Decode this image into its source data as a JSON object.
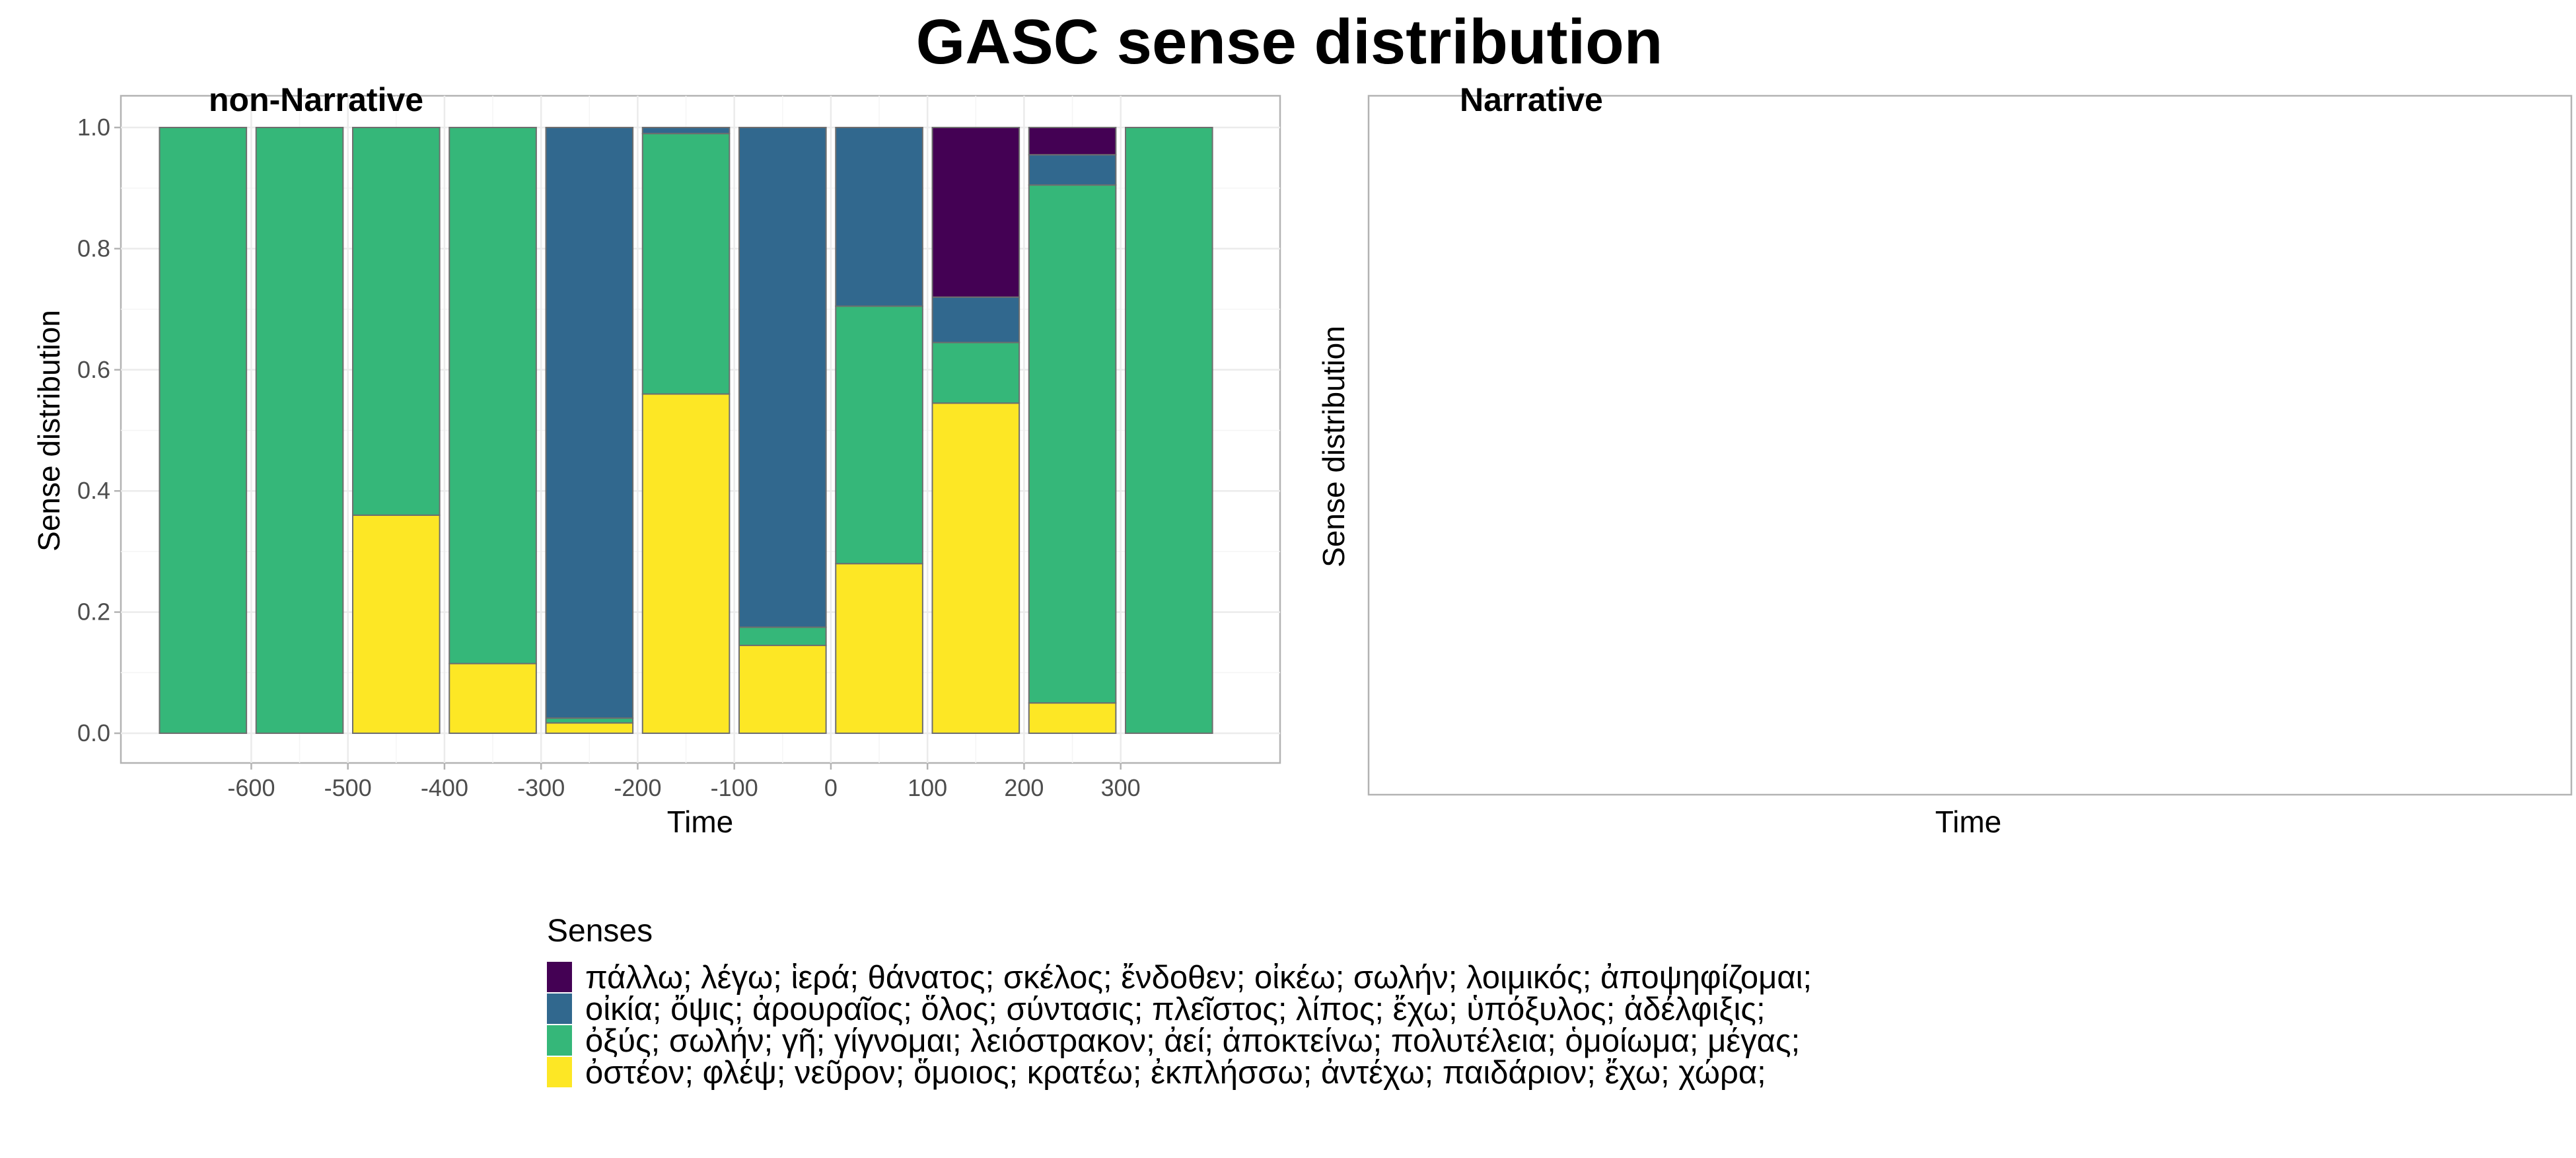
{
  "title": "GASC sense distribution",
  "colors": {
    "sense1": "#440154",
    "sense2": "#31688E",
    "sense3": "#35B779",
    "sense4": "#FDE725"
  },
  "chart_data": [
    {
      "type": "bar",
      "stacked": true,
      "panel_title": "non-Narrative",
      "xlabel": "Time",
      "ylabel": "Sense distribution",
      "ylim": [
        0,
        1
      ],
      "yticks": [
        "0.0",
        "0.2",
        "0.4",
        "0.6",
        "0.8",
        "1.0"
      ],
      "xticks": [
        "-600",
        "-500",
        "-400",
        "-300",
        "-200",
        "-100",
        "0",
        "100",
        "200",
        "300"
      ],
      "xtick_values": [
        -600,
        -500,
        -400,
        -300,
        -200,
        -100,
        0,
        100,
        200,
        300
      ],
      "categories": [
        -650,
        -550,
        -450,
        -350,
        -250,
        -150,
        -50,
        50,
        150,
        250,
        350
      ],
      "series": [
        {
          "name": "πάλλω; λέγω; ἱερά; θάνατος; σκέλος; ἔνδοθεν; οἰκέω; σωλήν; λοιμικός; ἀποψηφίζομαι;",
          "color_key": "sense1",
          "values": [
            0,
            0,
            0,
            0,
            0,
            0,
            0,
            0,
            0.28,
            0.045,
            0
          ]
        },
        {
          "name": "οἰκία; ὄψις; ἀρουραῖος; ὅλος; σύντασις; πλεῖστος; λίπος; ἔχω; ὑπόξυλος; ἀδέλφιξις;",
          "color_key": "sense2",
          "values": [
            0,
            0,
            0,
            0,
            0.975,
            0.01,
            0.825,
            0.295,
            0.075,
            0.05,
            0
          ]
        },
        {
          "name": "ὀξύς; σωλήν; γῆ; γίγνομαι; λειόστρακον; ἀεί; ἀποκτείνω; πολυτέλεια; ὁμοίωμα; μέγας;",
          "color_key": "sense3",
          "values": [
            1,
            1,
            0.64,
            0.885,
            0.008,
            0.43,
            0.03,
            0.425,
            0.1,
            0.855,
            1
          ]
        },
        {
          "name": "ὀστέον; φλέψ; νεῦρον; ὅμοιος; κρατέω; ἐκπλήσσω; ἀντέχω; παιδάριον; ἔχω; χώρα;",
          "color_key": "sense4",
          "values": [
            0,
            0,
            0.36,
            0.115,
            0.017,
            0.56,
            0.145,
            0.28,
            0.545,
            0.05,
            0
          ]
        }
      ],
      "grid": true
    },
    {
      "type": "bar",
      "panel_title": "Narrative",
      "xlabel": "Time",
      "ylabel": "Sense distribution",
      "series": [],
      "grid": false
    }
  ],
  "legend": {
    "title": "Senses",
    "items": [
      {
        "label": "πάλλω; λέγω; ἱερά; θάνατος; σκέλος; ἔνδοθεν; οἰκέω; σωλήν; λοιμικός; ἀποψηφίζομαι;",
        "color_key": "sense1"
      },
      {
        "label": "οἰκία; ὄψις; ἀρουραῖος; ὅλος; σύντασις; πλεῖστος; λίπος; ἔχω; ὑπόξυλος; ἀδέλφιξις;",
        "color_key": "sense2"
      },
      {
        "label": "ὀξύς; σωλήν; γῆ; γίγνομαι; λειόστρακον; ἀεί; ἀποκτείνω; πολυτέλεια; ὁμοίωμα; μέγας;",
        "color_key": "sense3"
      },
      {
        "label": "ὀστέον; φλέψ; νεῦρον; ὅμοιος; κρατέω; ἐκπλήσσω; ἀντέχω; παιδάριον; ἔχω; χώρα;",
        "color_key": "sense4"
      }
    ]
  }
}
